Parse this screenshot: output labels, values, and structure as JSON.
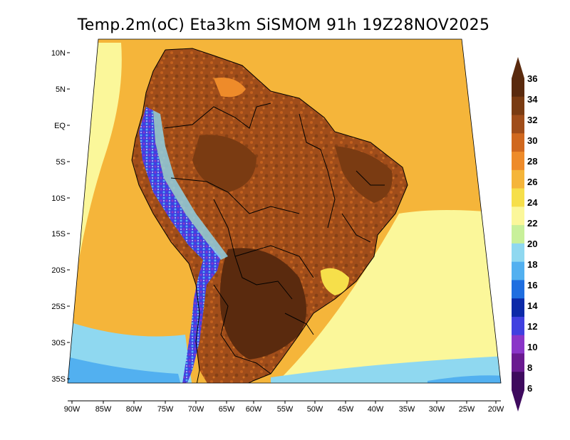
{
  "title": "Temp.2m(oC) Eta3km SiSMOM 91h 19Z28NOV2025",
  "lon_labels": [
    "90W",
    "85W",
    "80W",
    "75W",
    "70W",
    "65W",
    "60W",
    "55W",
    "50W",
    "45W",
    "40W",
    "35W",
    "30W",
    "25W",
    "20W"
  ],
  "lat_labels": [
    "10N",
    "5N",
    "EQ",
    "5S",
    "10S",
    "15S",
    "20S",
    "25S",
    "30S",
    "35S"
  ],
  "colorbar": {
    "labels": [
      "36",
      "34",
      "32",
      "30",
      "28",
      "26",
      "24",
      "22",
      "20",
      "18",
      "16",
      "14",
      "12",
      "10",
      "8",
      "6"
    ],
    "bins": [
      {
        "color": "#5a2a0e"
      },
      {
        "color": "#7a3b12"
      },
      {
        "color": "#a04d1a"
      },
      {
        "color": "#d0681f"
      },
      {
        "color": "#ee8b2a"
      },
      {
        "color": "#f5b53a"
      },
      {
        "color": "#f6df4a"
      },
      {
        "color": "#fbf79a"
      },
      {
        "color": "#c8f09a"
      },
      {
        "color": "#8fd8f0"
      },
      {
        "color": "#52b0f0"
      },
      {
        "color": "#1f6ee0"
      },
      {
        "color": "#0c2aa8"
      },
      {
        "color": "#4040e0"
      },
      {
        "color": "#8a35c8"
      },
      {
        "color": "#6a1a90"
      },
      {
        "color": "#3e0a5e"
      }
    ]
  },
  "colors": {
    "ocean_warm": "#f5b53a",
    "ocean_mild": "#fbf79a",
    "ocean_cool": "#c8f09a",
    "ocean_cold": "#8fd8f0",
    "land_hot": "#a04d1a",
    "land_very_hot": "#7a3b12",
    "land_extreme": "#5a2a0e",
    "andes_cold": "#4040e0",
    "border": "#000000"
  }
}
